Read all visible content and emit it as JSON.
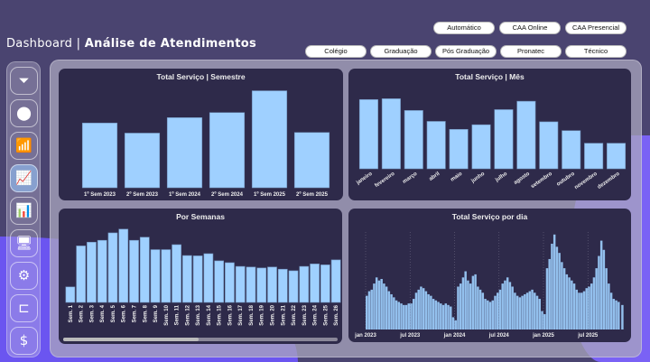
{
  "header": {
    "title_light": "Dashboard",
    "title_sep": " | ",
    "title_bold": "Análise de Atendimentos"
  },
  "filters": {
    "row1": [
      "Automático",
      "CAA Online",
      "CAA Presencial"
    ],
    "row2": [
      "Colégio",
      "Graduação",
      "Pós Graduação",
      "Pronatec",
      "Técnico"
    ]
  },
  "sidebar": {
    "items": [
      {
        "icon": "funnel-icon",
        "glyph": "⏷"
      },
      {
        "icon": "location-pin-icon",
        "glyph": "⬤"
      },
      {
        "icon": "growth-chart-icon",
        "glyph": "📶"
      },
      {
        "icon": "presentation-chart-icon",
        "glyph": "📈",
        "active": true
      },
      {
        "icon": "podium-chart-icon",
        "glyph": "📊"
      },
      {
        "icon": "monitor-check-icon",
        "glyph": "🖥"
      },
      {
        "icon": "hand-gears-icon",
        "glyph": "⚙"
      },
      {
        "icon": "hierarchy-icon",
        "glyph": "⊏"
      },
      {
        "icon": "hand-money-icon",
        "glyph": "$"
      }
    ]
  },
  "colors": {
    "bar": "#9fd0ff",
    "panel": "#2e2a4a",
    "background": "#4a4470"
  },
  "chart_data": [
    {
      "type": "bar",
      "title": "Total Serviço | Semestre",
      "categories": [
        "1º Sem 2023",
        "2º Sem 2023",
        "1º Sem 2024",
        "2º Sem 2024",
        "1º Sem 2025",
        "2º Sem 2025"
      ],
      "values": [
        205,
        173,
        222,
        238,
        307,
        175
      ]
    },
    {
      "type": "bar",
      "title": "Total Serviço | Mês",
      "categories": [
        "janeiro",
        "fevereiro",
        "março",
        "abril",
        "maio",
        "junho",
        "julho",
        "agosto",
        "setembro",
        "outubro",
        "novembro",
        "dezembro"
      ],
      "values": [
        165,
        167,
        139,
        113,
        94,
        105,
        141,
        161,
        112,
        91,
        61,
        61
      ]
    },
    {
      "type": "bar",
      "title": "Por Semanas",
      "categories": [
        "Sem. 1",
        "Sem. 2",
        "Sem. 3",
        "Sem. 4",
        "Sem. 5",
        "Sem. 6",
        "Sem. 7",
        "Sem. 8",
        "Sem. 9",
        "Sem. 10",
        "Sem. 11",
        "Sem. 12",
        "Sem. 13",
        "Sem. 14",
        "Sem. 15",
        "Sem. 16",
        "Sem. 17",
        "Sem. 18",
        "Sem. 19",
        "Sem. 20",
        "Sem. 21",
        "Sem. 22",
        "Sem. 23",
        "Sem. 24",
        "Sem. 25",
        "Sem. 26"
      ],
      "values": [
        50,
        182,
        194,
        200,
        224,
        236,
        200,
        210,
        170,
        170,
        186,
        151,
        150,
        157,
        134,
        128,
        116,
        114,
        111,
        114,
        107,
        102,
        116,
        124,
        121,
        137
      ]
    },
    {
      "type": "bar",
      "title": "Total Serviço por dia",
      "xticks": [
        "jan 2023",
        "jul 2023",
        "jan 2024",
        "jul 2024",
        "jan 2025",
        "jul 2025"
      ],
      "periods": [
        {
          "month": "2023-01",
          "values": [
            110,
            125,
            130
          ]
        },
        {
          "month": "2023-02",
          "values": [
            150,
            170,
            160
          ]
        },
        {
          "month": "2023-03",
          "values": [
            165,
            150,
            140
          ]
        },
        {
          "month": "2023-04",
          "values": [
            125,
            115,
            105
          ]
        },
        {
          "month": "2023-05",
          "values": [
            95,
            90,
            85
          ]
        },
        {
          "month": "2023-06",
          "values": [
            80,
            80,
            85
          ]
        },
        {
          "month": "2023-07",
          "values": [
            85,
            100,
            120
          ]
        },
        {
          "month": "2023-08",
          "values": [
            130,
            140,
            135
          ]
        },
        {
          "month": "2023-09",
          "values": [
            125,
            115,
            110
          ]
        },
        {
          "month": "2023-10",
          "values": [
            100,
            95,
            90
          ]
        },
        {
          "month": "2023-11",
          "values": [
            85,
            80,
            85
          ]
        },
        {
          "month": "2023-12",
          "values": [
            80,
            75,
            40
          ]
        },
        {
          "month": "2024-01",
          "values": [
            30,
            140,
            150
          ]
        },
        {
          "month": "2024-02",
          "values": [
            170,
            190,
            160
          ]
        },
        {
          "month": "2024-03",
          "values": [
            150,
            175,
            180
          ]
        },
        {
          "month": "2024-04",
          "values": [
            140,
            130,
            120
          ]
        },
        {
          "month": "2024-05",
          "values": [
            100,
            95,
            90
          ]
        },
        {
          "month": "2024-06",
          "values": [
            95,
            110,
            120
          ]
        },
        {
          "month": "2024-07",
          "values": [
            130,
            150,
            160
          ]
        },
        {
          "month": "2024-08",
          "values": [
            170,
            155,
            140
          ]
        },
        {
          "month": "2024-09",
          "values": [
            120,
            110,
            105
          ]
        },
        {
          "month": "2024-10",
          "values": [
            110,
            115,
            120
          ]
        },
        {
          "month": "2024-11",
          "values": [
            125,
            130,
            120
          ]
        },
        {
          "month": "2024-12",
          "values": [
            110,
            100,
            60
          ]
        },
        {
          "month": "2025-01",
          "values": [
            50,
            200,
            230
          ]
        },
        {
          "month": "2025-02",
          "values": [
            280,
            310,
            270
          ]
        },
        {
          "month": "2025-03",
          "values": [
            250,
            220,
            200
          ]
        },
        {
          "month": "2025-04",
          "values": [
            180,
            170,
            160
          ]
        },
        {
          "month": "2025-05",
          "values": [
            150,
            130,
            120
          ]
        },
        {
          "month": "2025-06",
          "values": [
            120,
            125,
            135
          ]
        },
        {
          "month": "2025-07",
          "values": [
            140,
            150,
            170
          ]
        },
        {
          "month": "2025-08",
          "values": [
            200,
            240,
            290
          ]
        },
        {
          "month": "2025-09",
          "values": [
            260,
            200,
            150
          ]
        },
        {
          "month": "2025-10",
          "values": [
            120,
            100,
            95
          ]
        },
        {
          "month": "2025-11",
          "values": [
            90,
            80
          ]
        }
      ]
    }
  ]
}
